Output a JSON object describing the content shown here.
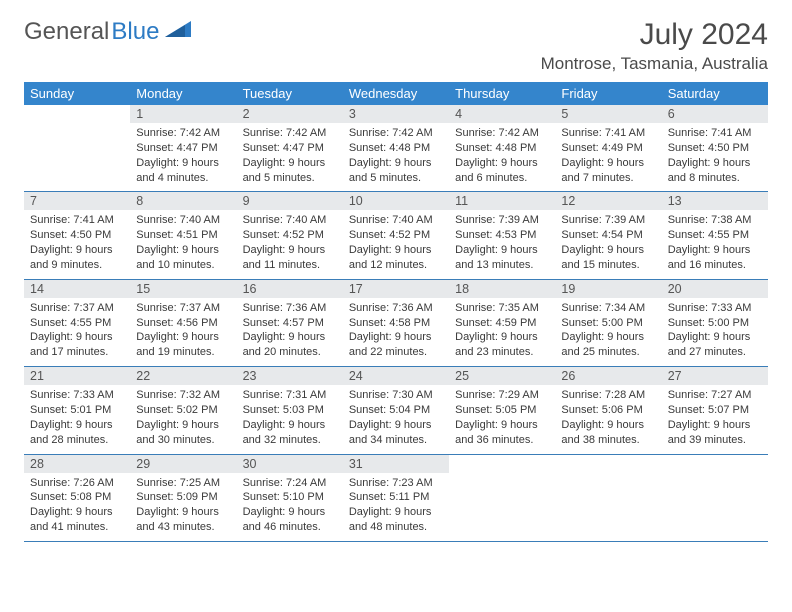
{
  "logo": {
    "word1": "General",
    "word2": "Blue"
  },
  "title": "July 2024",
  "location": "Montrose, Tasmania, Australia",
  "colors": {
    "header_bg": "#3485cc",
    "header_text": "#ffffff",
    "daynum_bg": "#e7e9eb",
    "row_border": "#3a7db8",
    "logo_blue": "#2d7bc4",
    "body_text": "#3a3a3a"
  },
  "weekdays": [
    "Sunday",
    "Monday",
    "Tuesday",
    "Wednesday",
    "Thursday",
    "Friday",
    "Saturday"
  ],
  "weeks": [
    [
      {
        "num": "",
        "lines": []
      },
      {
        "num": "1",
        "lines": [
          "Sunrise: 7:42 AM",
          "Sunset: 4:47 PM",
          "Daylight: 9 hours",
          "and 4 minutes."
        ]
      },
      {
        "num": "2",
        "lines": [
          "Sunrise: 7:42 AM",
          "Sunset: 4:47 PM",
          "Daylight: 9 hours",
          "and 5 minutes."
        ]
      },
      {
        "num": "3",
        "lines": [
          "Sunrise: 7:42 AM",
          "Sunset: 4:48 PM",
          "Daylight: 9 hours",
          "and 5 minutes."
        ]
      },
      {
        "num": "4",
        "lines": [
          "Sunrise: 7:42 AM",
          "Sunset: 4:48 PM",
          "Daylight: 9 hours",
          "and 6 minutes."
        ]
      },
      {
        "num": "5",
        "lines": [
          "Sunrise: 7:41 AM",
          "Sunset: 4:49 PM",
          "Daylight: 9 hours",
          "and 7 minutes."
        ]
      },
      {
        "num": "6",
        "lines": [
          "Sunrise: 7:41 AM",
          "Sunset: 4:50 PM",
          "Daylight: 9 hours",
          "and 8 minutes."
        ]
      }
    ],
    [
      {
        "num": "7",
        "lines": [
          "Sunrise: 7:41 AM",
          "Sunset: 4:50 PM",
          "Daylight: 9 hours",
          "and 9 minutes."
        ]
      },
      {
        "num": "8",
        "lines": [
          "Sunrise: 7:40 AM",
          "Sunset: 4:51 PM",
          "Daylight: 9 hours",
          "and 10 minutes."
        ]
      },
      {
        "num": "9",
        "lines": [
          "Sunrise: 7:40 AM",
          "Sunset: 4:52 PM",
          "Daylight: 9 hours",
          "and 11 minutes."
        ]
      },
      {
        "num": "10",
        "lines": [
          "Sunrise: 7:40 AM",
          "Sunset: 4:52 PM",
          "Daylight: 9 hours",
          "and 12 minutes."
        ]
      },
      {
        "num": "11",
        "lines": [
          "Sunrise: 7:39 AM",
          "Sunset: 4:53 PM",
          "Daylight: 9 hours",
          "and 13 minutes."
        ]
      },
      {
        "num": "12",
        "lines": [
          "Sunrise: 7:39 AM",
          "Sunset: 4:54 PM",
          "Daylight: 9 hours",
          "and 15 minutes."
        ]
      },
      {
        "num": "13",
        "lines": [
          "Sunrise: 7:38 AM",
          "Sunset: 4:55 PM",
          "Daylight: 9 hours",
          "and 16 minutes."
        ]
      }
    ],
    [
      {
        "num": "14",
        "lines": [
          "Sunrise: 7:37 AM",
          "Sunset: 4:55 PM",
          "Daylight: 9 hours",
          "and 17 minutes."
        ]
      },
      {
        "num": "15",
        "lines": [
          "Sunrise: 7:37 AM",
          "Sunset: 4:56 PM",
          "Daylight: 9 hours",
          "and 19 minutes."
        ]
      },
      {
        "num": "16",
        "lines": [
          "Sunrise: 7:36 AM",
          "Sunset: 4:57 PM",
          "Daylight: 9 hours",
          "and 20 minutes."
        ]
      },
      {
        "num": "17",
        "lines": [
          "Sunrise: 7:36 AM",
          "Sunset: 4:58 PM",
          "Daylight: 9 hours",
          "and 22 minutes."
        ]
      },
      {
        "num": "18",
        "lines": [
          "Sunrise: 7:35 AM",
          "Sunset: 4:59 PM",
          "Daylight: 9 hours",
          "and 23 minutes."
        ]
      },
      {
        "num": "19",
        "lines": [
          "Sunrise: 7:34 AM",
          "Sunset: 5:00 PM",
          "Daylight: 9 hours",
          "and 25 minutes."
        ]
      },
      {
        "num": "20",
        "lines": [
          "Sunrise: 7:33 AM",
          "Sunset: 5:00 PM",
          "Daylight: 9 hours",
          "and 27 minutes."
        ]
      }
    ],
    [
      {
        "num": "21",
        "lines": [
          "Sunrise: 7:33 AM",
          "Sunset: 5:01 PM",
          "Daylight: 9 hours",
          "and 28 minutes."
        ]
      },
      {
        "num": "22",
        "lines": [
          "Sunrise: 7:32 AM",
          "Sunset: 5:02 PM",
          "Daylight: 9 hours",
          "and 30 minutes."
        ]
      },
      {
        "num": "23",
        "lines": [
          "Sunrise: 7:31 AM",
          "Sunset: 5:03 PM",
          "Daylight: 9 hours",
          "and 32 minutes."
        ]
      },
      {
        "num": "24",
        "lines": [
          "Sunrise: 7:30 AM",
          "Sunset: 5:04 PM",
          "Daylight: 9 hours",
          "and 34 minutes."
        ]
      },
      {
        "num": "25",
        "lines": [
          "Sunrise: 7:29 AM",
          "Sunset: 5:05 PM",
          "Daylight: 9 hours",
          "and 36 minutes."
        ]
      },
      {
        "num": "26",
        "lines": [
          "Sunrise: 7:28 AM",
          "Sunset: 5:06 PM",
          "Daylight: 9 hours",
          "and 38 minutes."
        ]
      },
      {
        "num": "27",
        "lines": [
          "Sunrise: 7:27 AM",
          "Sunset: 5:07 PM",
          "Daylight: 9 hours",
          "and 39 minutes."
        ]
      }
    ],
    [
      {
        "num": "28",
        "lines": [
          "Sunrise: 7:26 AM",
          "Sunset: 5:08 PM",
          "Daylight: 9 hours",
          "and 41 minutes."
        ]
      },
      {
        "num": "29",
        "lines": [
          "Sunrise: 7:25 AM",
          "Sunset: 5:09 PM",
          "Daylight: 9 hours",
          "and 43 minutes."
        ]
      },
      {
        "num": "30",
        "lines": [
          "Sunrise: 7:24 AM",
          "Sunset: 5:10 PM",
          "Daylight: 9 hours",
          "and 46 minutes."
        ]
      },
      {
        "num": "31",
        "lines": [
          "Sunrise: 7:23 AM",
          "Sunset: 5:11 PM",
          "Daylight: 9 hours",
          "and 48 minutes."
        ]
      },
      {
        "num": "",
        "lines": []
      },
      {
        "num": "",
        "lines": []
      },
      {
        "num": "",
        "lines": []
      }
    ]
  ]
}
